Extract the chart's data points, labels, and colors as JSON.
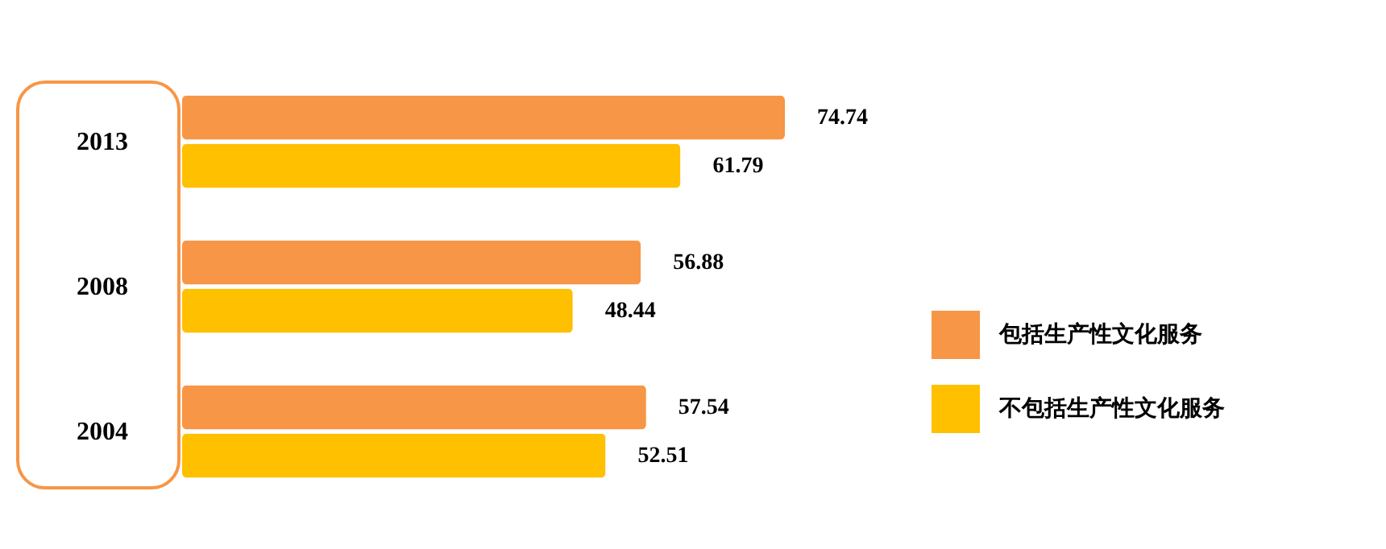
{
  "chart_data": {
    "type": "bar",
    "orientation": "horizontal",
    "categories": [
      "2013",
      "2008",
      "2004"
    ],
    "series": [
      {
        "name": "包括生产性文化服务",
        "color": "#f79646",
        "values": [
          74.74,
          56.88,
          57.54
        ]
      },
      {
        "name": "不包括生产性文化服务",
        "color": "#ffc000",
        "values": [
          61.79,
          48.44,
          52.51
        ]
      }
    ],
    "data_labels": true,
    "legend": "right",
    "grid": false
  }
}
